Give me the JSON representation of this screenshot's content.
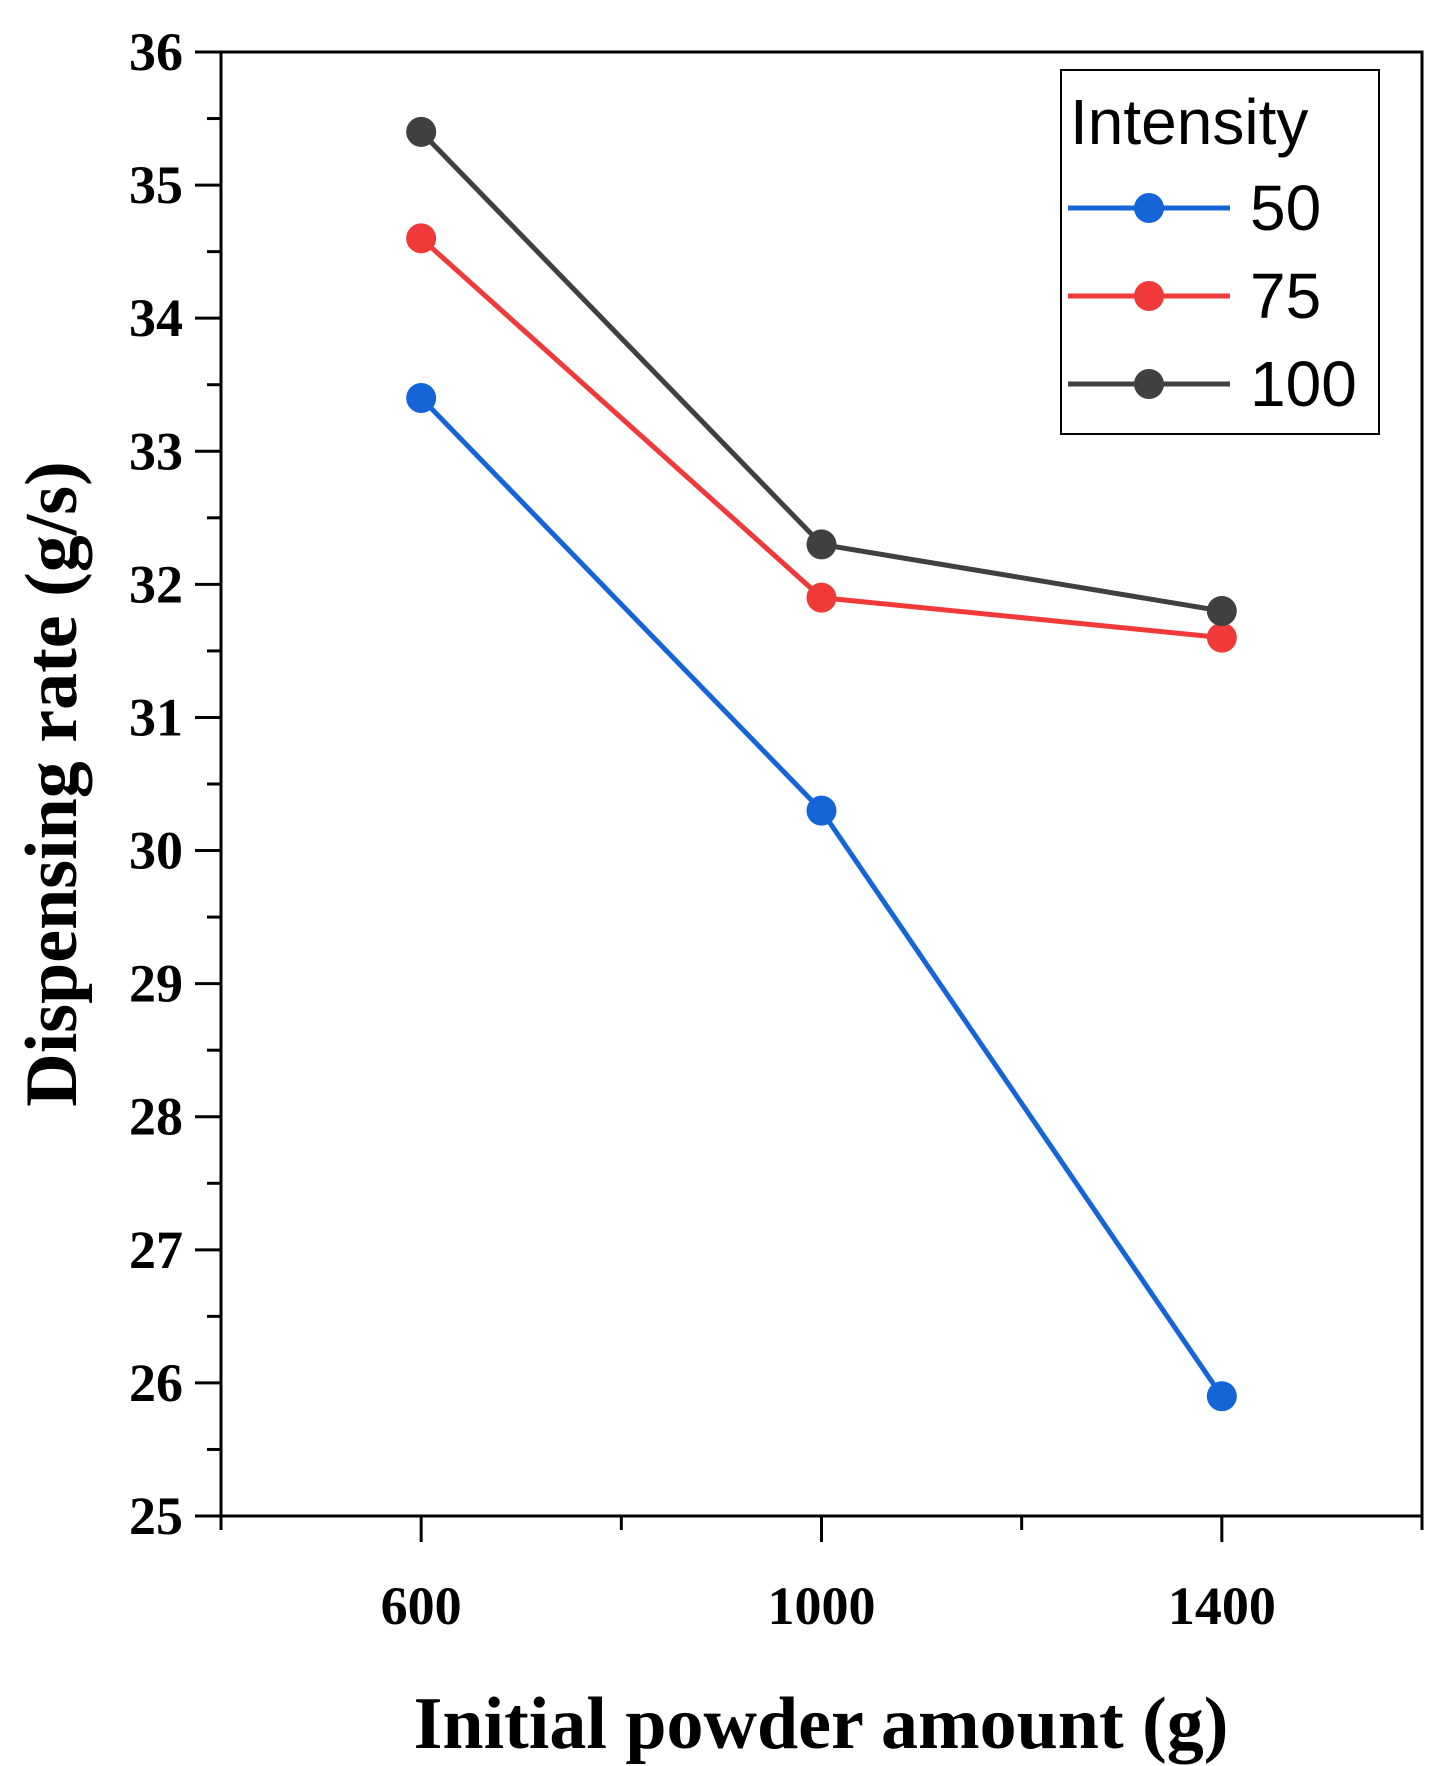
{
  "chart_data": {
    "type": "line",
    "title": "",
    "xlabel": "Initial powder amount (g)",
    "ylabel": "Dispensing rate (g/s)",
    "x": [
      600,
      1000,
      1400
    ],
    "xlim": [
      400,
      1600
    ],
    "ylim": [
      25,
      36
    ],
    "xticks": [
      600,
      1000,
      1400
    ],
    "xtick_labels": [
      "600",
      "1000",
      "1400"
    ],
    "yticks": [
      25,
      26,
      27,
      28,
      29,
      30,
      31,
      32,
      33,
      34,
      35,
      36
    ],
    "ytick_labels": [
      "25",
      "26",
      "27",
      "28",
      "29",
      "30",
      "31",
      "32",
      "33",
      "34",
      "35",
      "36"
    ],
    "grid": false,
    "legend": {
      "title": "Intensity",
      "position": "top-right"
    },
    "series": [
      {
        "name": "50",
        "color": "#1565d8",
        "values": [
          33.4,
          30.3,
          25.9
        ]
      },
      {
        "name": "75",
        "color": "#f03a3a",
        "values": [
          34.6,
          31.9,
          31.6
        ]
      },
      {
        "name": "100",
        "color": "#404040",
        "values": [
          35.4,
          32.3,
          31.8
        ]
      }
    ]
  }
}
